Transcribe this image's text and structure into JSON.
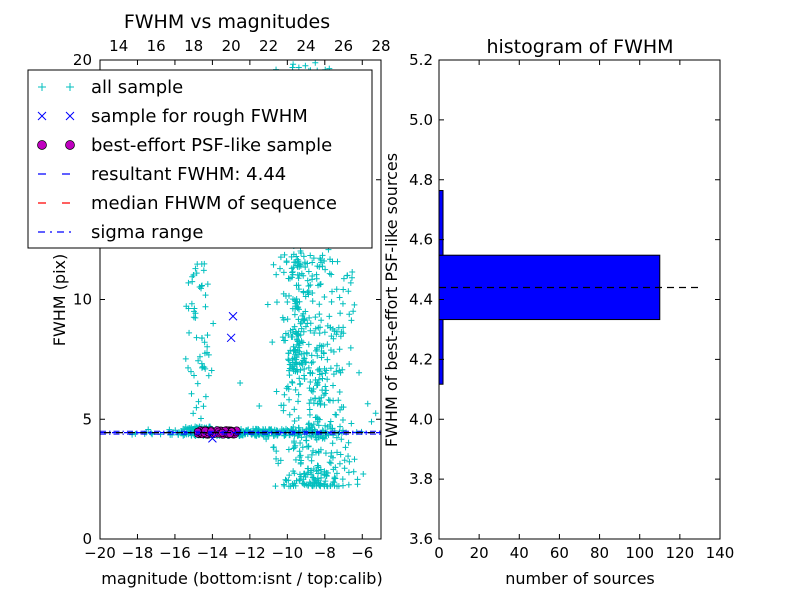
{
  "colors": {
    "all_sample": "#00bfbf",
    "rough": "#0000ff",
    "best": "#bf00bf",
    "resultant": "#0000ff",
    "median": "#ff0000",
    "sigma": "#0000ff",
    "hist_bar": "#0000ff",
    "hist_line": "#000000"
  },
  "chart_data": [
    {
      "type": "scatter",
      "title": "FWHM vs magnitudes",
      "xlabel": "magnitude (bottom:isnt / top:calib)",
      "ylabel": "FWHM (pix)",
      "xlim": [
        -20,
        -5
      ],
      "xticks": [
        "−20",
        "−18",
        "−16",
        "−14",
        "−12",
        "−10",
        "−8",
        "−6"
      ],
      "top_xlim": [
        13,
        28
      ],
      "top_xticks": [
        "14",
        "16",
        "18",
        "20",
        "22",
        "24",
        "26",
        "28"
      ],
      "ylim": [
        0,
        20
      ],
      "yticks": [
        "0",
        "5",
        "10",
        "15",
        "20"
      ],
      "grid": false,
      "legend_position": "upper-left",
      "legend": [
        {
          "label": "all sample",
          "marker": "+",
          "color_key": "all_sample"
        },
        {
          "label": "sample for rough FWHM",
          "marker": "x",
          "color_key": "rough"
        },
        {
          "label": "best-effort PSF-like sample",
          "marker": "o",
          "color_key": "best"
        },
        {
          "label": "resultant FWHM: 4.44",
          "marker": "dashed",
          "color_key": "resultant"
        },
        {
          "label": "median FHWM of sequence",
          "marker": "dashed",
          "color_key": "median"
        },
        {
          "label": "sigma range",
          "marker": "dashdot",
          "color_key": "sigma"
        }
      ],
      "resultant_fwhm": 4.44,
      "sigma_range": [
        4.38,
        4.5
      ],
      "sample_for_rough_fwhm": [
        {
          "x": -12.9,
          "y": 9.3
        },
        {
          "x": -13.0,
          "y": 8.4
        },
        {
          "x": -14.0,
          "y": 4.2
        }
      ],
      "best_effort_psf_like": {
        "x_range": [
          -14.8,
          -12.7
        ],
        "y": 4.45,
        "count": 110
      },
      "all_sample_clusters": [
        {
          "x_center": -14.7,
          "x_spread": 0.35,
          "y_min": 4.3,
          "y_max": 11.5
        },
        {
          "x_center": -8.5,
          "x_spread": 1.0,
          "y_min": 2.2,
          "y_max": 20
        },
        {
          "x_center": -9.5,
          "x_spread": 0.25,
          "y_min": 7.0,
          "y_max": 20
        },
        {
          "x_center": -12.0,
          "x_spread": 2.5,
          "y_min": 4.3,
          "y_max": 4.6
        }
      ]
    },
    {
      "type": "bar",
      "orientation": "horizontal",
      "title": "histogram of FWHM",
      "xlabel": "number of sources",
      "ylabel": "FWHM of best-effort PSF-like sources",
      "xlim": [
        0,
        140
      ],
      "xticks": [
        "0",
        "20",
        "40",
        "60",
        "80",
        "100",
        "120",
        "140"
      ],
      "ylim": [
        3.6,
        5.2
      ],
      "yticks": [
        "3.6",
        "3.8",
        "4.0",
        "4.2",
        "4.4",
        "4.6",
        "4.8",
        "5.0",
        "5.2"
      ],
      "grid": false,
      "bins": [
        {
          "y_low": 4.117,
          "y_high": 4.333,
          "count": 2
        },
        {
          "y_low": 4.333,
          "y_high": 4.548,
          "count": 110
        },
        {
          "y_low": 4.548,
          "y_high": 4.764,
          "count": 2
        }
      ],
      "reference_line_y": 4.44
    }
  ]
}
